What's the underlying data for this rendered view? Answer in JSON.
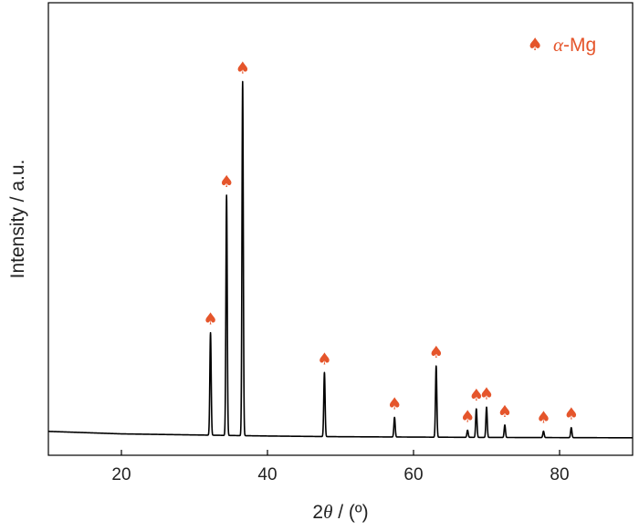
{
  "chart_data": {
    "type": "line",
    "title": "",
    "xlabel": {
      "prefix": "2",
      "symbol": "θ",
      "suffix": " / (º)"
    },
    "ylabel": "Intensity / a.u.",
    "xlim": [
      10,
      90
    ],
    "ylim": [
      0,
      100
    ],
    "x_ticks": [
      20,
      40,
      60,
      80
    ],
    "x_tick_labels": [
      "20",
      "40",
      "60",
      "80"
    ],
    "y_ticks_shown": false,
    "grid": false,
    "line_color": "#000000",
    "marker_color": "#E5552B",
    "legend": {
      "position": "top-right",
      "symbol": "♠",
      "label_symbol": "α",
      "label_suffix": "-Mg"
    },
    "baseline": {
      "x": [
        10,
        20,
        30,
        40,
        50,
        60,
        70,
        80,
        90
      ],
      "y": [
        2.1,
        1.4,
        1.1,
        0.8,
        0.6,
        0.5,
        0.4,
        0.35,
        0.3
      ]
    },
    "peaks": [
      {
        "x": 32.2,
        "height": 28.8,
        "marked": true
      },
      {
        "x": 34.4,
        "height": 67.5,
        "marked": true
      },
      {
        "x": 36.6,
        "height": 99.5,
        "marked": true
      },
      {
        "x": 47.8,
        "height": 18.0,
        "marked": true
      },
      {
        "x": 57.4,
        "height": 5.5,
        "marked": true
      },
      {
        "x": 63.1,
        "height": 20.0,
        "marked": true
      },
      {
        "x": 67.4,
        "height": 2.0,
        "marked": true
      },
      {
        "x": 68.6,
        "height": 8.0,
        "marked": true
      },
      {
        "x": 70.0,
        "height": 8.5,
        "marked": true
      },
      {
        "x": 72.5,
        "height": 3.5,
        "marked": true
      },
      {
        "x": 77.8,
        "height": 1.8,
        "marked": true
      },
      {
        "x": 81.6,
        "height": 2.8,
        "marked": true
      }
    ],
    "marker_symbol": "♠"
  }
}
